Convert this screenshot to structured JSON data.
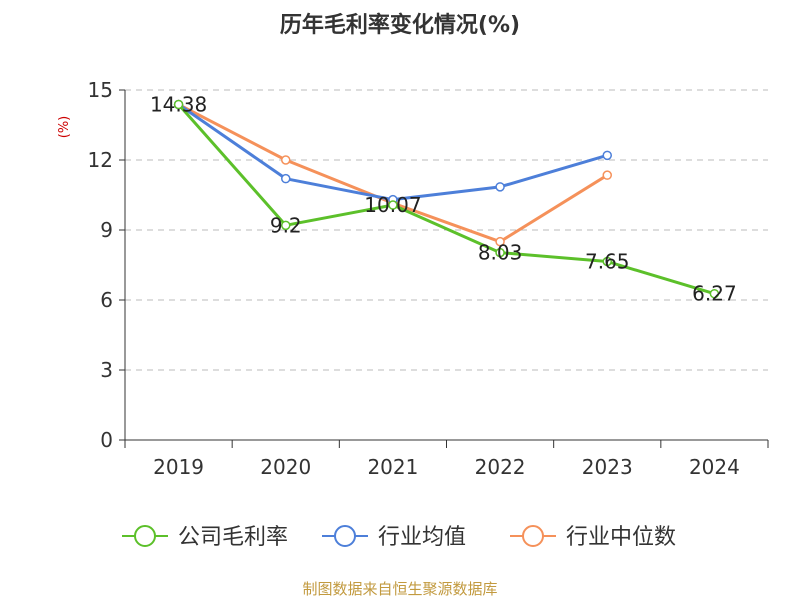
{
  "chart_data": {
    "type": "line",
    "title": "历年毛利率变化情况(%)",
    "ylabel": "(%)",
    "xlabel": "",
    "categories": [
      "2019",
      "2020",
      "2021",
      "2022",
      "2023",
      "2024"
    ],
    "ylim": [
      0,
      15
    ],
    "yticks": [
      0,
      3,
      6,
      9,
      12,
      15
    ],
    "grid": true,
    "legend_position": "bottom",
    "series": [
      {
        "name": "公司毛利率",
        "color": "#5cc02a",
        "values": [
          14.38,
          9.2,
          10.07,
          8.03,
          7.65,
          6.27
        ],
        "labels": [
          "14.38",
          "9.2",
          "10.07",
          "8.03",
          "7.65",
          "6.27"
        ]
      },
      {
        "name": "行业均值",
        "color": "#4d7fd9",
        "values": [
          14.38,
          11.2,
          10.3,
          10.85,
          12.2,
          null
        ]
      },
      {
        "name": "行业中位数",
        "color": "#f5915a",
        "values": [
          14.38,
          12.0,
          10.15,
          8.5,
          11.35,
          null
        ]
      }
    ]
  },
  "source": "制图数据来自恒生聚源数据库",
  "colors": {
    "ylabel": "#cc0000",
    "source": "#c29a3f",
    "grid": "#bbbbbb",
    "axis": "#333333"
  }
}
